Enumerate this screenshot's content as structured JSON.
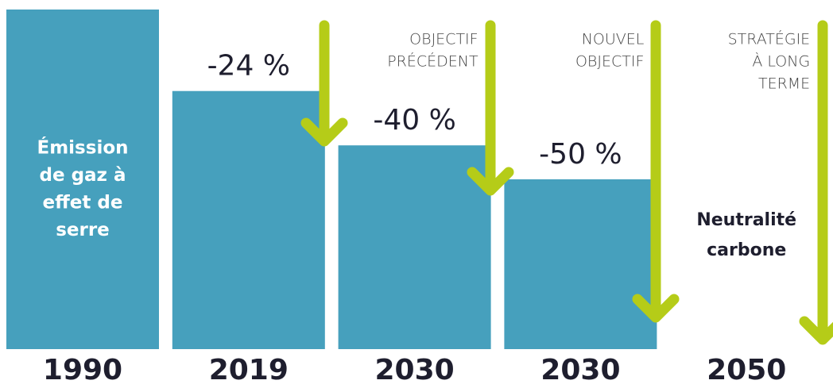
{
  "chart_data": {
    "type": "bar",
    "categories": [
      "1990",
      "2019",
      "2030",
      "2030",
      "2050"
    ],
    "values": [
      0,
      -24,
      -40,
      -50,
      -100
    ],
    "value_labels": [
      null,
      "-24 %",
      "-40 %",
      "-50 %",
      null
    ],
    "color": "#46a0bd",
    "ylim": [
      -100,
      0
    ],
    "bar_texts": [
      [
        "Émission",
        "de gaz à",
        "effet de",
        "serre"
      ],
      null,
      null,
      null,
      [
        "Neutralité",
        "carbone"
      ]
    ],
    "annotations": [
      null,
      null,
      [
        "OBJECTIF",
        "PRÉCÉDENT"
      ],
      [
        "NOUVEL",
        "OBJECTIF"
      ],
      [
        "STRATÉGIE",
        "À LONG",
        "TERME"
      ]
    ]
  }
}
